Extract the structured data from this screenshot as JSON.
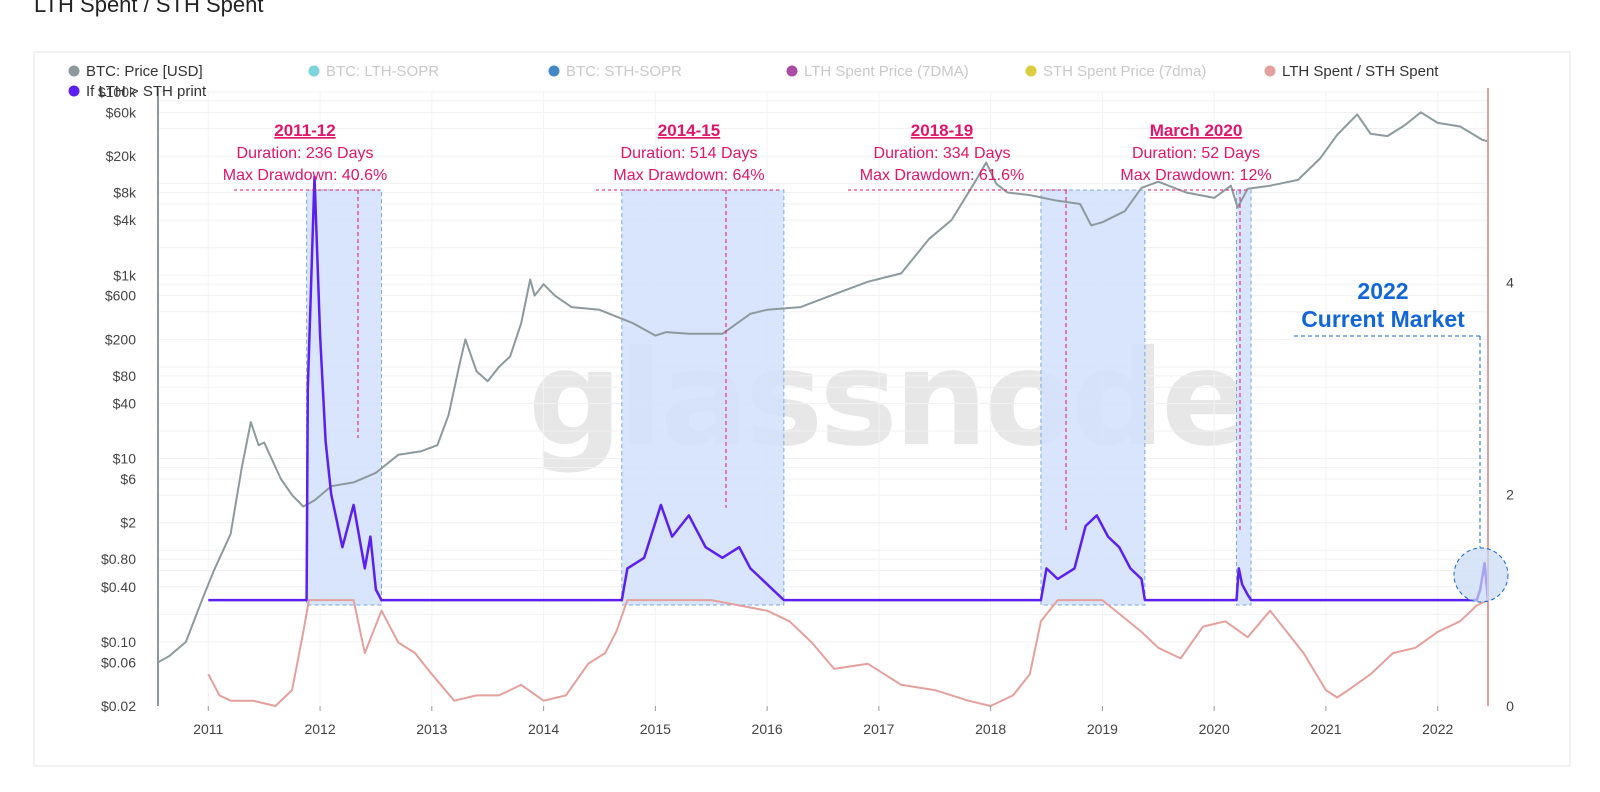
{
  "header": {
    "title": "LTH Spent / STH Spent"
  },
  "watermark": "glassnode",
  "legend": [
    {
      "label": "BTC: Price [USD]",
      "color": "#8c9a9e",
      "muted": false
    },
    {
      "label": "BTC: LTH-SOPR",
      "color": "#6dcfd6",
      "muted": true
    },
    {
      "label": "BTC: STH-SOPR",
      "color": "#2e7bbf",
      "muted": true
    },
    {
      "label": "LTH Spent Price (7DMA)",
      "color": "#a03a9c",
      "muted": true
    },
    {
      "label": "STH Spent Price (7dma)",
      "color": "#d7c828",
      "muted": true
    },
    {
      "label": "LTH Spent / STH Spent",
      "color": "#e4a09c",
      "muted": false
    },
    {
      "label": "If LTH > STH print",
      "color": "#5b1ff0",
      "muted": false
    }
  ],
  "annotations": [
    {
      "title": "2011-12",
      "duration": "Duration: 236 Days",
      "drawdown": "Max Drawdown: 40.6%"
    },
    {
      "title": "2014-15",
      "duration": "Duration: 514 Days",
      "drawdown": "Max Drawdown: 64%"
    },
    {
      "title": "2018-19",
      "duration": "Duration: 334 Days",
      "drawdown": "Max Drawdown: 61.6%"
    },
    {
      "title": "March 2020",
      "duration": "Duration: 52 Days",
      "drawdown": "Max Drawdown: 12%"
    }
  ],
  "current_market": {
    "line1": "2022",
    "line2": "Current Market"
  },
  "chart_data": {
    "type": "line",
    "x_ticks": [
      "2011",
      "2012",
      "2013",
      "2014",
      "2015",
      "2016",
      "2017",
      "2018",
      "2019",
      "2020",
      "2021",
      "2022"
    ],
    "y_left_ticks": [
      "$100k",
      "$60k",
      "$20k",
      "$8k",
      "$4k",
      "$1k",
      "$600",
      "$200",
      "$80",
      "$40",
      "$10",
      "$6",
      "$2",
      "$0.80",
      "$0.40",
      "$0.10",
      "$0.06",
      "$0.02"
    ],
    "y_left_scale": "log",
    "y_left_range": [
      0.02,
      100000
    ],
    "y_right_ticks": [
      "4",
      "2",
      "0"
    ],
    "y_right_range": [
      0,
      5.8
    ],
    "x_range": [
      2010.55,
      2022.45
    ],
    "grid": true,
    "legend_position": "top-left",
    "shaded_periods": [
      {
        "label": "2011-12",
        "start": 2011.88,
        "end": 2012.55
      },
      {
        "label": "2014-15",
        "start": 2014.7,
        "end": 2016.15
      },
      {
        "label": "2018-19",
        "start": 2018.45,
        "end": 2019.38
      },
      {
        "label": "March 2020",
        "start": 2020.2,
        "end": 2020.33
      }
    ],
    "series": [
      {
        "name": "BTC: Price [USD]",
        "axis": "left",
        "x": [
          2010.55,
          2010.65,
          2010.8,
          2010.95,
          2011.05,
          2011.2,
          2011.3,
          2011.38,
          2011.45,
          2011.5,
          2011.55,
          2011.65,
          2011.75,
          2011.85,
          2011.95,
          2012.1,
          2012.3,
          2012.5,
          2012.7,
          2012.9,
          2013.05,
          2013.15,
          2013.25,
          2013.3,
          2013.4,
          2013.5,
          2013.6,
          2013.7,
          2013.8,
          2013.88,
          2013.92,
          2014.0,
          2014.1,
          2014.25,
          2014.5,
          2014.8,
          2015.0,
          2015.1,
          2015.3,
          2015.6,
          2015.85,
          2016.0,
          2016.3,
          2016.6,
          2016.9,
          2017.2,
          2017.45,
          2017.65,
          2017.85,
          2017.96,
          2018.05,
          2018.15,
          2018.35,
          2018.6,
          2018.8,
          2018.9,
          2019.0,
          2019.2,
          2019.35,
          2019.5,
          2019.75,
          2020.0,
          2020.15,
          2020.21,
          2020.3,
          2020.5,
          2020.75,
          2020.95,
          2021.1,
          2021.28,
          2021.4,
          2021.55,
          2021.7,
          2021.85,
          2022.0,
          2022.2,
          2022.4,
          2022.45
        ],
        "y": [
          0.06,
          0.07,
          0.1,
          0.3,
          0.6,
          1.5,
          8,
          25,
          14,
          15,
          11,
          6,
          4,
          3,
          3.5,
          5,
          5.5,
          7,
          11,
          12,
          14,
          30,
          110,
          200,
          90,
          70,
          100,
          130,
          300,
          900,
          600,
          800,
          600,
          450,
          420,
          300,
          220,
          240,
          230,
          230,
          380,
          420,
          450,
          620,
          850,
          1050,
          2500,
          4000,
          10000,
          17000,
          10000,
          8000,
          7500,
          6500,
          6000,
          3500,
          3800,
          5000,
          9000,
          10500,
          8000,
          7000,
          9500,
          5500,
          8800,
          9500,
          11000,
          19000,
          34000,
          57000,
          35000,
          33000,
          43000,
          60000,
          46000,
          42000,
          30000,
          29000
        ]
      },
      {
        "name": "LTH Spent / STH Spent",
        "axis": "right",
        "x": [
          2011.0,
          2011.1,
          2011.2,
          2011.4,
          2011.6,
          2011.75,
          2011.85,
          2011.9,
          2012.0,
          2012.15,
          2012.3,
          2012.4,
          2012.55,
          2012.7,
          2012.85,
          2013.0,
          2013.2,
          2013.4,
          2013.6,
          2013.8,
          2014.0,
          2014.2,
          2014.4,
          2014.55,
          2014.65,
          2014.75,
          2015.0,
          2015.5,
          2016.0,
          2016.2,
          2016.4,
          2016.6,
          2016.9,
          2017.2,
          2017.5,
          2017.8,
          2018.0,
          2018.2,
          2018.35,
          2018.45,
          2018.6,
          2019.0,
          2019.35,
          2019.5,
          2019.7,
          2019.9,
          2020.1,
          2020.3,
          2020.5,
          2020.8,
          2021.0,
          2021.1,
          2021.2,
          2021.4,
          2021.6,
          2021.8,
          2022.0,
          2022.2,
          2022.35,
          2022.45
        ],
        "y": [
          0.3,
          0.1,
          0.05,
          0.05,
          0.0,
          0.15,
          0.7,
          1.0,
          1.0,
          1.0,
          1.0,
          0.5,
          0.9,
          0.6,
          0.5,
          0.3,
          0.05,
          0.1,
          0.1,
          0.2,
          0.05,
          0.1,
          0.4,
          0.5,
          0.7,
          1.0,
          1.0,
          1.0,
          0.9,
          0.8,
          0.6,
          0.35,
          0.4,
          0.2,
          0.15,
          0.05,
          0.0,
          0.1,
          0.3,
          0.8,
          1.0,
          1.0,
          0.7,
          0.55,
          0.45,
          0.75,
          0.8,
          0.65,
          0.9,
          0.5,
          0.15,
          0.08,
          0.15,
          0.3,
          0.5,
          0.55,
          0.7,
          0.8,
          0.95,
          1.0
        ]
      },
      {
        "name": "If LTH > STH print",
        "axis": "right",
        "x": [
          2011.0,
          2011.88,
          2011.89,
          2011.95,
          2012.0,
          2012.05,
          2012.1,
          2012.2,
          2012.3,
          2012.4,
          2012.45,
          2012.5,
          2012.55,
          2014.7,
          2014.75,
          2014.9,
          2015.05,
          2015.15,
          2015.3,
          2015.45,
          2015.6,
          2015.75,
          2015.85,
          2016.15,
          2018.45,
          2018.5,
          2018.6,
          2018.75,
          2018.85,
          2018.95,
          2019.05,
          2019.15,
          2019.25,
          2019.35,
          2019.38,
          2020.2,
          2020.22,
          2020.25,
          2020.3,
          2020.33,
          2022.35,
          2022.38,
          2022.42,
          2022.45
        ],
        "y": [
          1.0,
          1.0,
          3.0,
          5.0,
          3.5,
          2.5,
          2.0,
          1.5,
          1.9,
          1.3,
          1.6,
          1.1,
          1.0,
          1.0,
          1.3,
          1.4,
          1.9,
          1.6,
          1.8,
          1.5,
          1.4,
          1.5,
          1.3,
          1.0,
          1.0,
          1.3,
          1.2,
          1.3,
          1.7,
          1.8,
          1.6,
          1.5,
          1.3,
          1.2,
          1.0,
          1.0,
          1.3,
          1.15,
          1.05,
          1.0,
          1.0,
          1.1,
          1.35,
          1.0
        ]
      }
    ]
  }
}
